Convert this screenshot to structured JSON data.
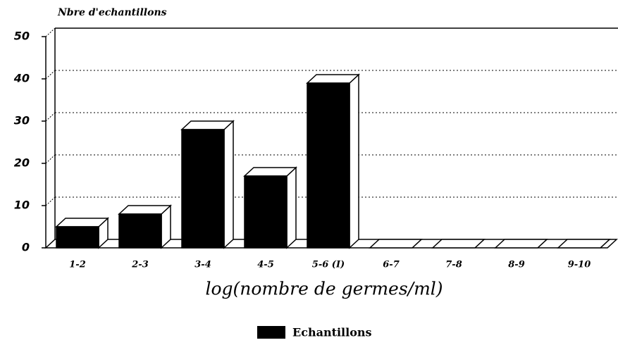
{
  "chart_data": {
    "type": "bar3d",
    "y_label": "Nbre d'echantillons",
    "x_label": "log(nombre de germes/ml)",
    "categories": [
      "1-2",
      "2-3",
      "3-4",
      "4-5",
      "5-6 (I)",
      "6-7",
      "7-8",
      "8-9",
      "9-10"
    ],
    "series": [
      {
        "name": "Echantillons",
        "color": "#000000",
        "values": [
          5,
          8,
          28,
          17,
          39,
          0,
          0,
          0,
          0
        ]
      }
    ],
    "ylim": [
      0,
      50
    ],
    "yticks": [
      0,
      10,
      20,
      30,
      40,
      50
    ],
    "grid": true,
    "legend": "bottom"
  }
}
